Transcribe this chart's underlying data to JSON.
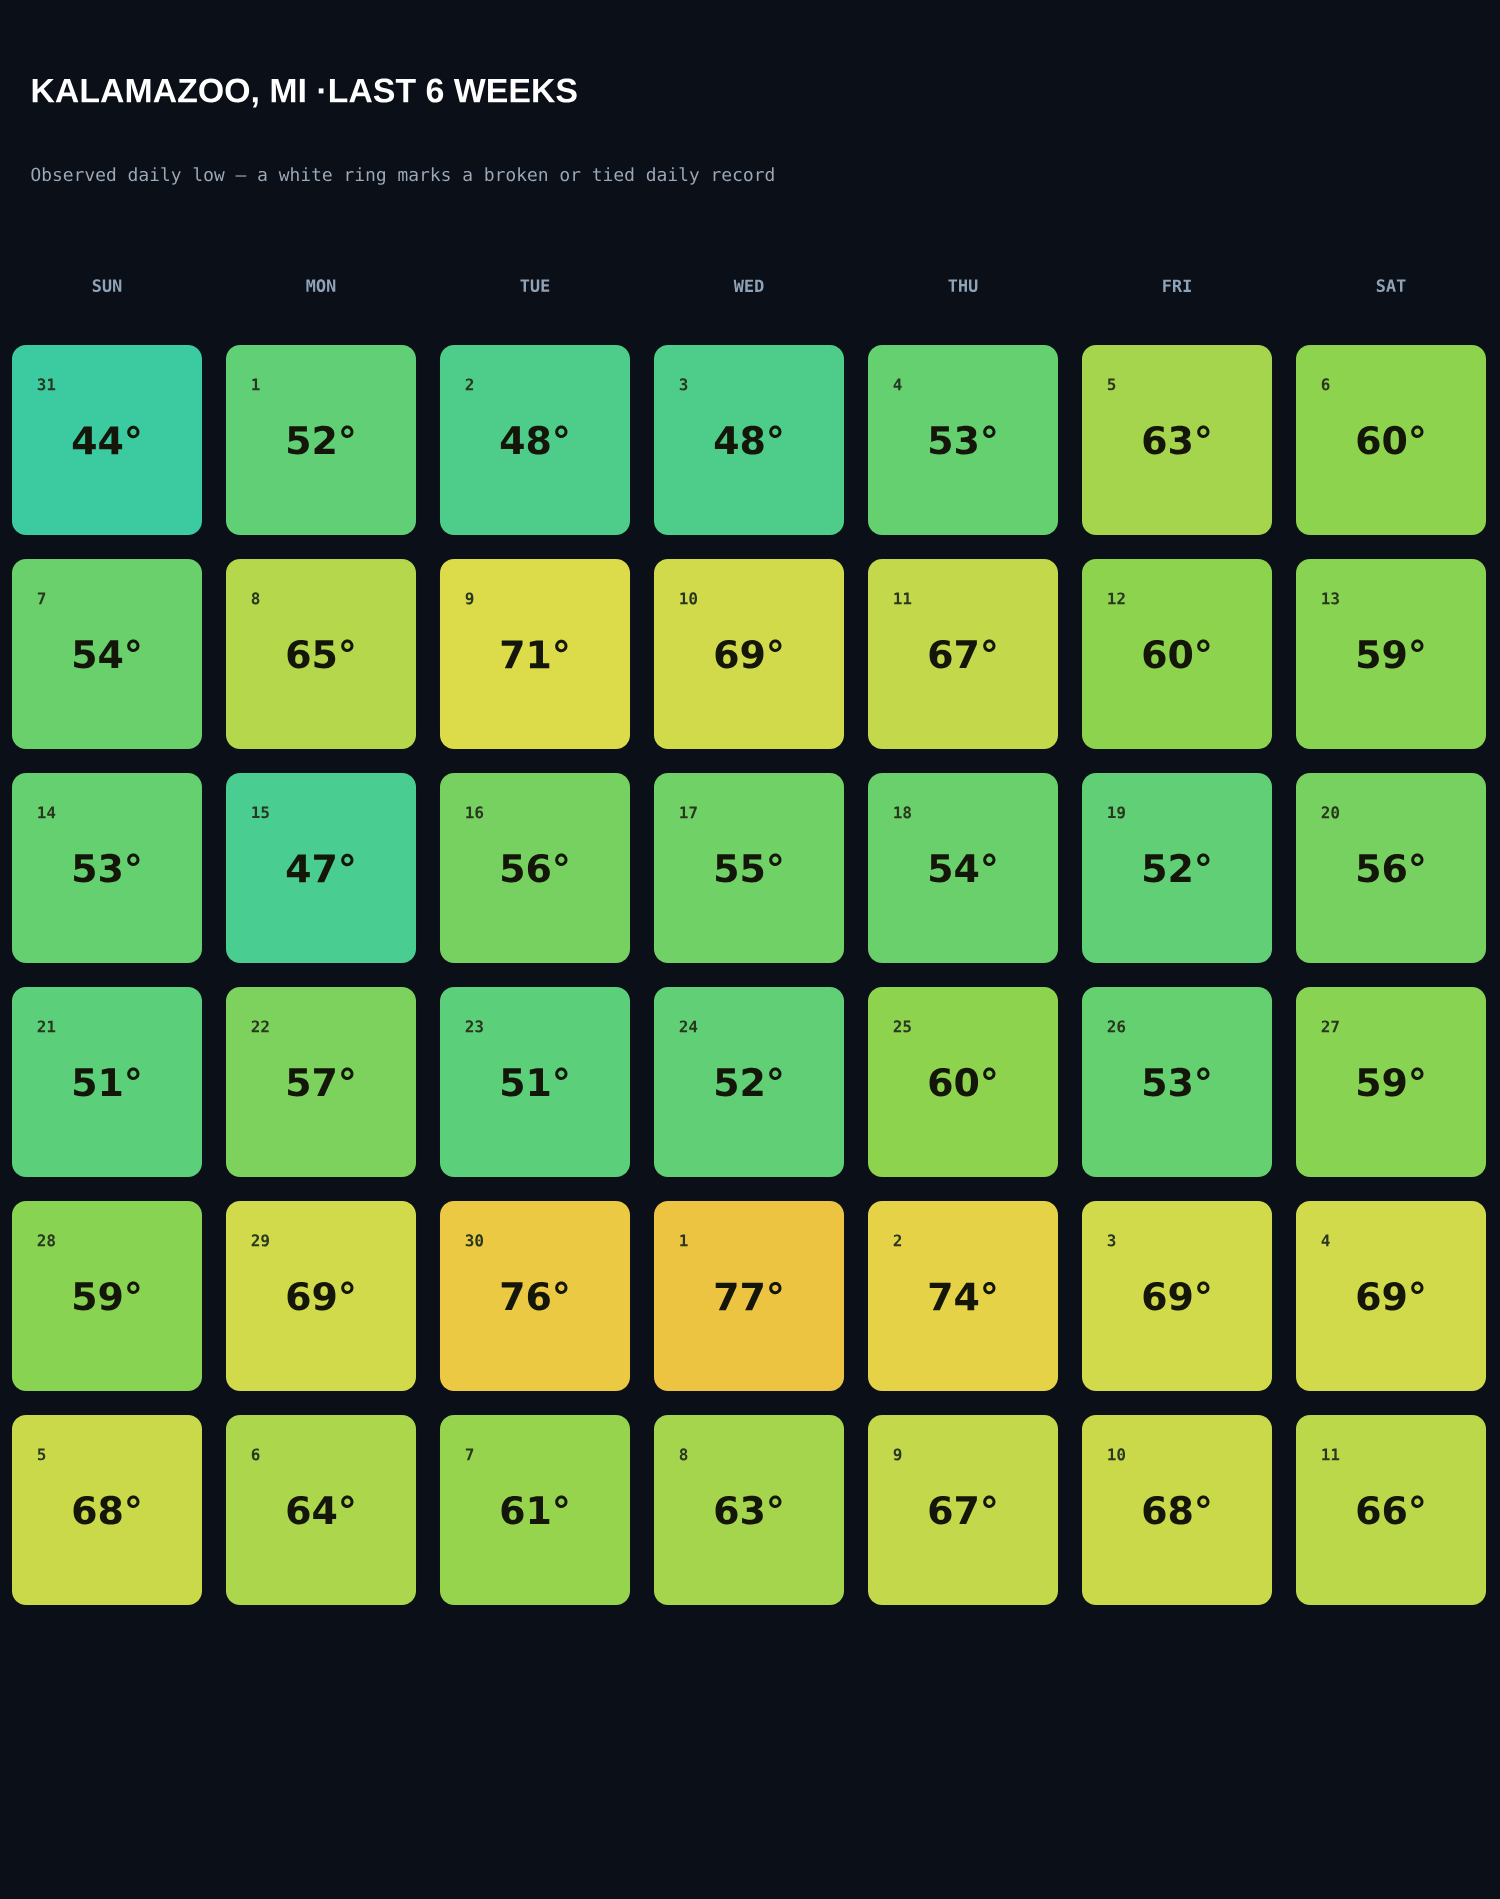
{
  "chart_data": {
    "type": "heatmap",
    "title": "KALAMAZOO, MI ·LAST 6 WEEKS",
    "subtitle": "Observed daily low — a white ring marks a broken or tied daily record",
    "categories": [
      "SUN",
      "MON",
      "TUE",
      "WED",
      "THU",
      "FRI",
      "SAT"
    ],
    "y_categories": [
      null,
      null,
      null,
      null,
      null,
      null
    ],
    "cells": [
      [
        44,
        52,
        48,
        48,
        53,
        63,
        60
      ],
      [
        54,
        65,
        71,
        69,
        67,
        60,
        59
      ],
      [
        53,
        47,
        56,
        55,
        54,
        52,
        56
      ],
      [
        51,
        57,
        51,
        52,
        60,
        53,
        59
      ],
      [
        59,
        69,
        76,
        77,
        74,
        69,
        69
      ],
      [
        68,
        64,
        61,
        63,
        67,
        68,
        66
      ]
    ],
    "cell_labels": [
      [
        "44°",
        "52°",
        "48°",
        "48°",
        "53°",
        "63°",
        "60°"
      ],
      [
        "54°",
        "65°",
        "71°",
        "69°",
        "67°",
        "60°",
        "59°"
      ],
      [
        "53°",
        "47°",
        "56°",
        "55°",
        "54°",
        "52°",
        "56°"
      ],
      [
        "51°",
        "57°",
        "51°",
        "52°",
        "60°",
        "53°",
        "59°"
      ],
      [
        "59°",
        "69°",
        "76°",
        "77°",
        "74°",
        "69°",
        "69°"
      ],
      [
        "68°",
        "64°",
        "61°",
        "63°",
        "67°",
        "68°",
        "66°"
      ]
    ],
    "annotations": [
      "31",
      "1",
      "2",
      "3",
      "4",
      "5",
      "6",
      "7",
      "8",
      "9",
      "10",
      "11",
      "12",
      "13",
      "14",
      "15",
      "16",
      "17",
      "18",
      "19",
      "20",
      "21",
      "22",
      "23",
      "24",
      "25",
      "26",
      "27",
      "28",
      "29",
      "30",
      "1",
      "2",
      "3",
      "4",
      "5",
      "6",
      "7",
      "8",
      "9",
      "10",
      "11"
    ]
  }
}
